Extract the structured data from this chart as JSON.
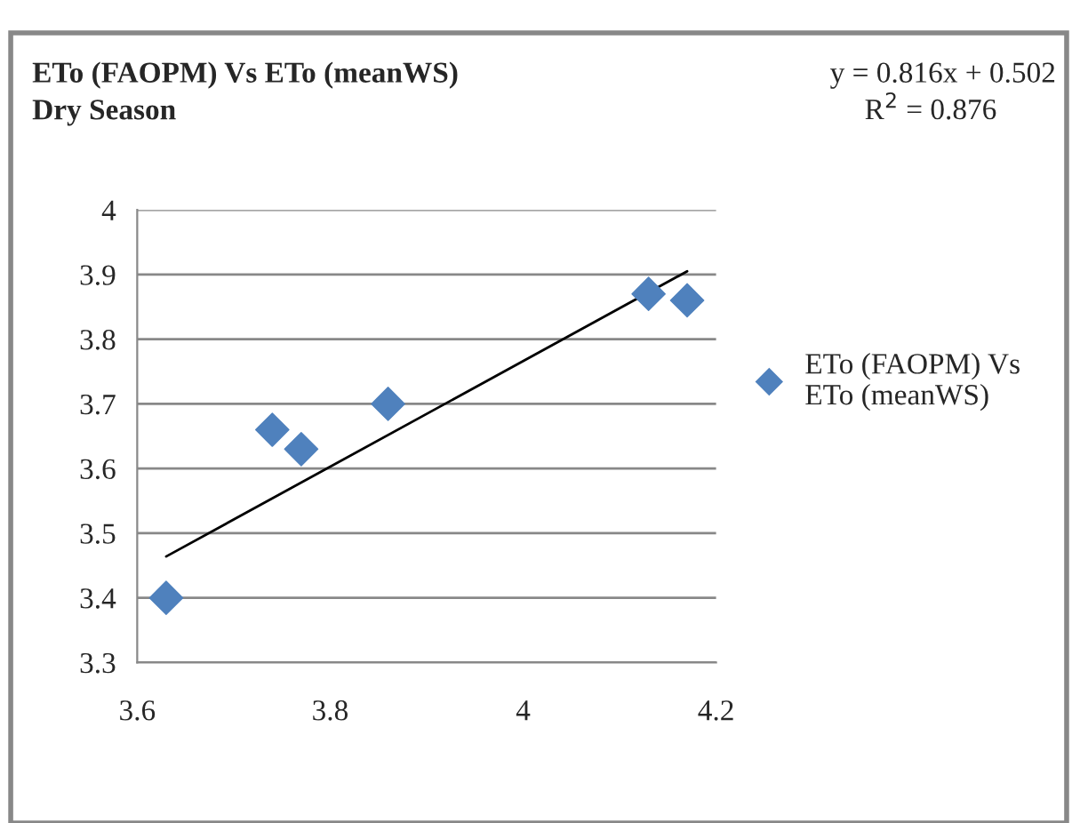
{
  "chart_data": {
    "type": "scatter",
    "title": "ETo (FAOPM) Vs ETo (meanWS)",
    "subtitle": "Dry Season",
    "annotations": [
      "y = 0.816x + 0.502",
      "R$^{2}$ = 0.876"
    ],
    "series": [
      {
        "name": "ETo (FAOPM) Vs ETo (meanWS)",
        "color": "#4f81bd",
        "marker": "diamond",
        "x": [
          3.63,
          3.74,
          3.77,
          3.86,
          4.13,
          4.17
        ],
        "values": [
          3.4,
          3.66,
          3.63,
          3.7,
          3.87,
          3.86
        ]
      },
      {
        "type": "line",
        "color": "#000000",
        "marker": "none",
        "x": [
          3.63,
          4.17
        ],
        "values": [
          3.464,
          3.905
        ]
      }
    ],
    "xlim": [
      3.6,
      4.2
    ],
    "xticks": [
      3.6,
      3.8,
      4,
      4.2
    ],
    "ylim": [
      3.3,
      4
    ],
    "yticks": [
      3.3,
      3.4,
      3.5,
      3.6,
      3.7,
      3.8,
      3.9,
      4
    ],
    "grid": "y",
    "legend": "right"
  }
}
